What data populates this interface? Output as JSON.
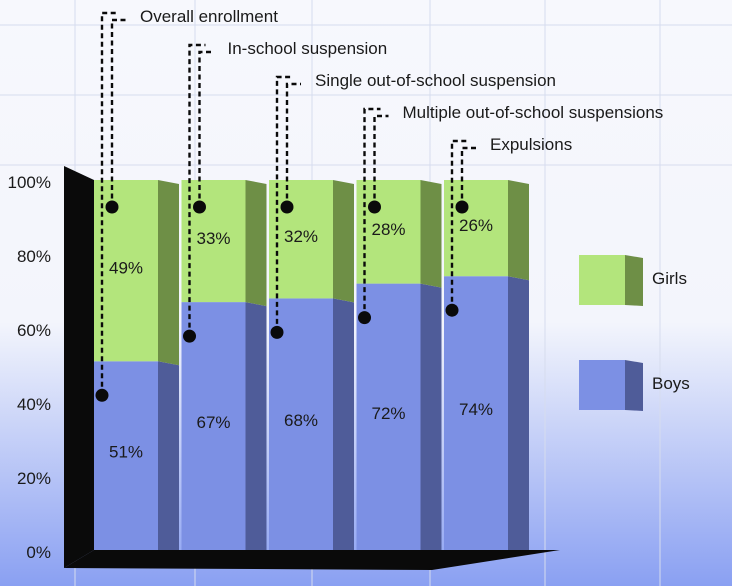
{
  "colors": {
    "background_top": "#f7f8fd",
    "background_bottom": "#8aa0f2",
    "grid": "#d6dcee",
    "girls_face": "#b3e57c",
    "girls_side": "#6e8f46",
    "boys_face": "#7c90e4",
    "boys_side": "#4f5c99",
    "text": "#1a1a1a",
    "dark": "#0a0a0a"
  },
  "chart_data": {
    "type": "bar",
    "stacked": true,
    "three_d": true,
    "categories": [
      "Overall enrollment",
      "In-school suspension",
      "Single out-of-school suspension",
      "Multiple out-of-school suspensions",
      "Expulsions"
    ],
    "series": [
      {
        "name": "Boys",
        "values": [
          51,
          67,
          68,
          72,
          74
        ],
        "labels": [
          "51%",
          "67%",
          "68%",
          "72%",
          "74%"
        ]
      },
      {
        "name": "Girls",
        "values": [
          49,
          33,
          32,
          28,
          26
        ],
        "labels": [
          "49%",
          "33%",
          "32%",
          "28%",
          "26%"
        ]
      }
    ],
    "y_ticks": [
      "0%",
      "20%",
      "40%",
      "60%",
      "80%",
      "100%"
    ],
    "ylim": [
      0,
      100
    ],
    "grid": true,
    "legend": {
      "position": "right",
      "entries": [
        "Girls",
        "Boys"
      ]
    }
  }
}
